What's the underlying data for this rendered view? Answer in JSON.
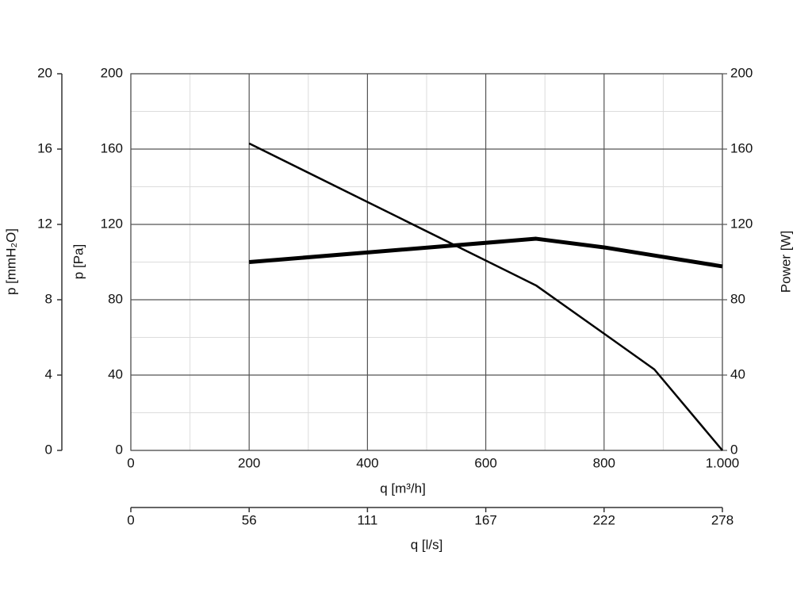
{
  "chart_data": {
    "type": "line",
    "x": [
      200,
      685,
      800,
      885,
      1000
    ],
    "series": [
      {
        "color": "#000000",
        "width": 2.5,
        "values": [
          163,
          87.6,
          62,
          43,
          0
        ]
      },
      {
        "color": "#000000",
        "width": 5,
        "axis": "y2",
        "values": [
          100,
          112.4,
          107.8,
          103.5,
          97.7
        ]
      }
    ],
    "xlim": [
      0,
      1000
    ],
    "xticks": [
      0,
      200,
      400,
      600,
      800,
      {
        "value": 1000,
        "label": "1.000"
      }
    ],
    "minor_xticks": [
      100,
      300,
      500,
      700,
      900
    ],
    "xlabel": "q [m³/h]",
    "ylim": [
      0,
      200
    ],
    "yticks": [
      0,
      40,
      80,
      120,
      160,
      200
    ],
    "minor_yticks": [
      20,
      60,
      100,
      140,
      180
    ],
    "ylabel": "p [Pa]",
    "y2lim": [
      0,
      200
    ],
    "y2ticks": [
      0,
      40,
      80,
      120,
      160,
      200
    ],
    "y2label": "Power [W]",
    "y3lim": [
      0,
      20
    ],
    "y3ticks": [
      0,
      4,
      8,
      12,
      16,
      20
    ],
    "y3label": "p [mmH₂O]",
    "x2lim": [
      0,
      277.78
    ],
    "x2ticks": [
      0,
      {
        "value": 55.56,
        "label": "56"
      },
      {
        "value": 111.11,
        "label": "111"
      },
      {
        "value": 166.67,
        "label": "167"
      },
      {
        "value": 222.22,
        "label": "222"
      },
      {
        "value": 277.78,
        "label": "278"
      }
    ],
    "x2label": "q [l/s]",
    "grid": true
  }
}
